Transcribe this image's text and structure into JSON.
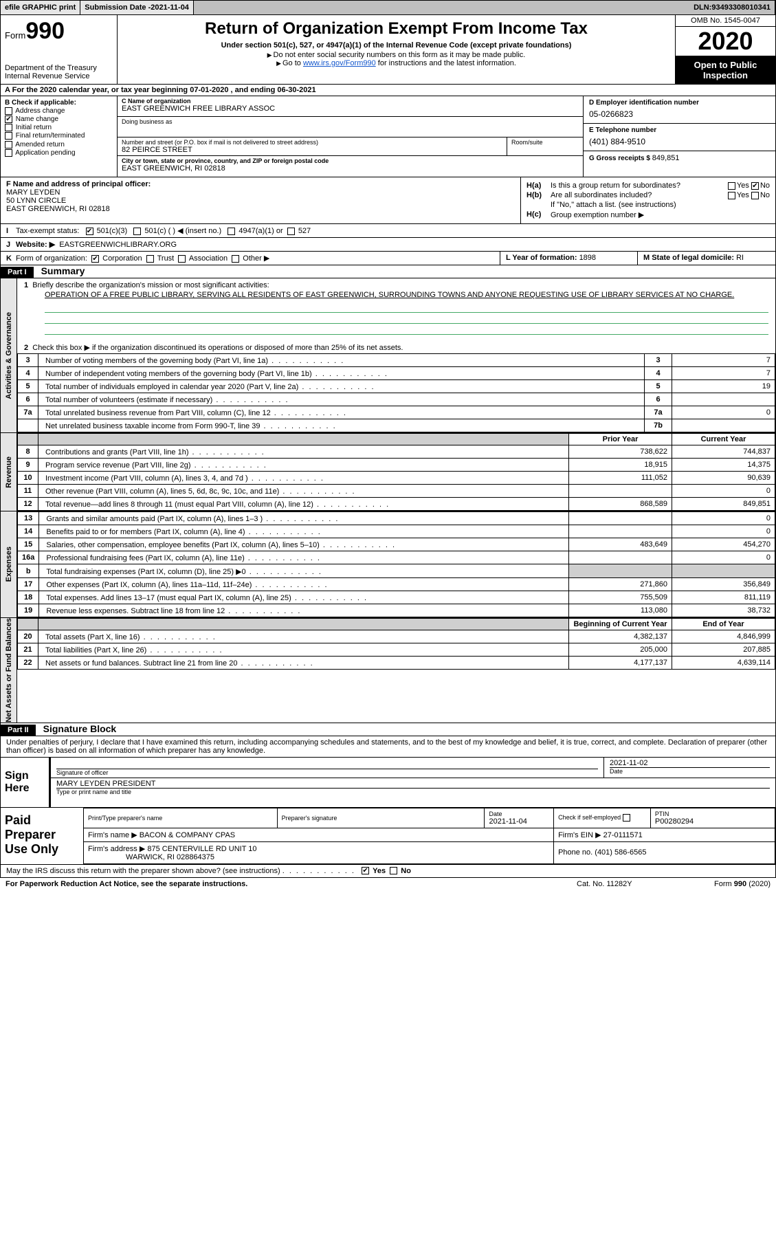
{
  "topbar": {
    "efile": "efile GRAPHIC print",
    "sub_label": "Submission Date - ",
    "sub_date": "2021-11-04",
    "dln_label": "DLN: ",
    "dln": "93493308010341"
  },
  "header": {
    "form_word": "Form",
    "form_num": "990",
    "dept": "Department of the Treasury\nInternal Revenue Service",
    "title": "Return of Organization Exempt From Income Tax",
    "subtitle": "Under section 501(c), 527, or 4947(a)(1) of the Internal Revenue Code (except private foundations)",
    "note1": "Do not enter social security numbers on this form as it may be made public.",
    "note2_pre": "Go to ",
    "note2_link": "www.irs.gov/Form990",
    "note2_post": " for instructions and the latest information.",
    "omb": "OMB No. 1545-0047",
    "year": "2020",
    "inspect": "Open to Public Inspection"
  },
  "period": {
    "text_pre": "For the 2020 calendar year, or tax year beginning ",
    "begin": "07-01-2020",
    "mid": " , and ending ",
    "end": "06-30-2021"
  },
  "B": {
    "header": "B Check if applicable:",
    "items": [
      "Address change",
      "Name change",
      "Initial return",
      "Final return/terminated",
      "Amended return",
      "Application pending"
    ],
    "checked_index": 1
  },
  "C": {
    "name_label": "C Name of organization",
    "name": "EAST GREENWICH FREE LIBRARY ASSOC",
    "dba_label": "Doing business as",
    "dba": "",
    "street_label": "Number and street (or P.O. box if mail is not delivered to street address)",
    "street": "82 PEIRCE STREET",
    "room_label": "Room/suite",
    "city_label": "City or town, state or province, country, and ZIP or foreign postal code",
    "city": "EAST GREENWICH, RI  02818"
  },
  "D": {
    "ein_label": "D Employer identification number",
    "ein": "05-0266823",
    "phone_label": "E Telephone number",
    "phone": "(401) 884-9510",
    "gross_label": "G Gross receipts $ ",
    "gross": "849,851"
  },
  "F": {
    "label": "F Name and address of principal officer:",
    "name": "MARY LEYDEN",
    "addr1": "50 LYNN CIRCLE",
    "addr2": "EAST GREENWICH, RI  02818"
  },
  "H": {
    "a": "Is this a group return for subordinates?",
    "a_yes": "Yes",
    "a_no": "No",
    "a_checked": "No",
    "b": "Are all subordinates included?",
    "b_yes": "Yes",
    "b_no": "No",
    "b_note": "If \"No,\" attach a list. (see instructions)",
    "c": "Group exemption number ▶"
  },
  "I": {
    "label": "Tax-exempt status:",
    "opt1": "501(c)(3)",
    "opt2": "501(c) (  ) ◀ (insert no.)",
    "opt3": "4947(a)(1) or",
    "opt4": "527",
    "checked": 0
  },
  "J": {
    "label": "Website: ▶",
    "value": "EASTGREENWICHLIBRARY.ORG"
  },
  "K": {
    "label": "Form of organization:",
    "opts": [
      "Corporation",
      "Trust",
      "Association",
      "Other ▶"
    ],
    "checked": 0
  },
  "LM": {
    "L_label": "L Year of formation: ",
    "L_val": "1898",
    "M_label": "M State of legal domicile: ",
    "M_val": "RI"
  },
  "part1": {
    "bar": "Part I",
    "title": "Summary",
    "side_gov": "Activities & Governance",
    "side_rev": "Revenue",
    "side_exp": "Expenses",
    "side_net": "Net Assets or Fund Balances",
    "q1": "Briefly describe the organization's mission or most significant activities:",
    "mission": "OPERATION OF A FREE PUBLIC LIBRARY, SERVING ALL RESIDENTS OF EAST GREENWICH, SURROUNDING TOWNS AND ANYONE REQUESTING USE OF LIBRARY SERVICES AT NO CHARGE.",
    "q2": "Check this box ▶  if the organization discontinued its operations or disposed of more than 25% of its net assets.",
    "lines_gov": [
      {
        "n": "3",
        "d": "Number of voting members of the governing body (Part VI, line 1a)",
        "box": "3",
        "v": "7"
      },
      {
        "n": "4",
        "d": "Number of independent voting members of the governing body (Part VI, line 1b)",
        "box": "4",
        "v": "7"
      },
      {
        "n": "5",
        "d": "Total number of individuals employed in calendar year 2020 (Part V, line 2a)",
        "box": "5",
        "v": "19"
      },
      {
        "n": "6",
        "d": "Total number of volunteers (estimate if necessary)",
        "box": "6",
        "v": ""
      },
      {
        "n": "7a",
        "d": "Total unrelated business revenue from Part VIII, column (C), line 12",
        "box": "7a",
        "v": "0"
      },
      {
        "n": "",
        "d": "Net unrelated business taxable income from Form 990-T, line 39",
        "box": "7b",
        "v": ""
      }
    ],
    "col_prior": "Prior Year",
    "col_current": "Current Year",
    "col_boy": "Beginning of Current Year",
    "col_eoy": "End of Year",
    "lines_rev": [
      {
        "n": "8",
        "d": "Contributions and grants (Part VIII, line 1h)",
        "p": "738,622",
        "c": "744,837"
      },
      {
        "n": "9",
        "d": "Program service revenue (Part VIII, line 2g)",
        "p": "18,915",
        "c": "14,375"
      },
      {
        "n": "10",
        "d": "Investment income (Part VIII, column (A), lines 3, 4, and 7d )",
        "p": "111,052",
        "c": "90,639"
      },
      {
        "n": "11",
        "d": "Other revenue (Part VIII, column (A), lines 5, 6d, 8c, 9c, 10c, and 11e)",
        "p": "",
        "c": "0"
      },
      {
        "n": "12",
        "d": "Total revenue—add lines 8 through 11 (must equal Part VIII, column (A), line 12)",
        "p": "868,589",
        "c": "849,851"
      }
    ],
    "lines_exp": [
      {
        "n": "13",
        "d": "Grants and similar amounts paid (Part IX, column (A), lines 1–3 )",
        "p": "",
        "c": "0"
      },
      {
        "n": "14",
        "d": "Benefits paid to or for members (Part IX, column (A), line 4)",
        "p": "",
        "c": "0"
      },
      {
        "n": "15",
        "d": "Salaries, other compensation, employee benefits (Part IX, column (A), lines 5–10)",
        "p": "483,649",
        "c": "454,270"
      },
      {
        "n": "16a",
        "d": "Professional fundraising fees (Part IX, column (A), line 11e)",
        "p": "",
        "c": "0"
      },
      {
        "n": "b",
        "d": "Total fundraising expenses (Part IX, column (D), line 25) ▶0",
        "p": "__shade__",
        "c": "__shade__"
      },
      {
        "n": "17",
        "d": "Other expenses (Part IX, column (A), lines 11a–11d, 11f–24e)",
        "p": "271,860",
        "c": "356,849"
      },
      {
        "n": "18",
        "d": "Total expenses. Add lines 13–17 (must equal Part IX, column (A), line 25)",
        "p": "755,509",
        "c": "811,119"
      },
      {
        "n": "19",
        "d": "Revenue less expenses. Subtract line 18 from line 12",
        "p": "113,080",
        "c": "38,732"
      }
    ],
    "lines_net": [
      {
        "n": "20",
        "d": "Total assets (Part X, line 16)",
        "p": "4,382,137",
        "c": "4,846,999"
      },
      {
        "n": "21",
        "d": "Total liabilities (Part X, line 26)",
        "p": "205,000",
        "c": "207,885"
      },
      {
        "n": "22",
        "d": "Net assets or fund balances. Subtract line 21 from line 20",
        "p": "4,177,137",
        "c": "4,639,114"
      }
    ]
  },
  "part2": {
    "bar": "Part II",
    "title": "Signature Block",
    "penalty": "Under penalties of perjury, I declare that I have examined this return, including accompanying schedules and statements, and to the best of my knowledge and belief, it is true, correct, and complete. Declaration of preparer (other than officer) is based on all information of which preparer has any knowledge.",
    "sign_here": "Sign Here",
    "sig_officer": "Signature of officer",
    "sig_date": "Date",
    "sig_date_val": "2021-11-02",
    "officer_name": "MARY LEYDEN  PRESIDENT",
    "type_name": "Type or print name and title"
  },
  "prep": {
    "label": "Paid Preparer Use Only",
    "c_name": "Print/Type preparer's name",
    "c_sig": "Preparer's signature",
    "c_date": "Date",
    "date_val": "2021-11-04",
    "c_self": "Check        if self-employed",
    "c_ptin": "PTIN",
    "ptin_val": "P00280294",
    "firm_name_lbl": "Firm's name   ▶",
    "firm_name": "BACON & COMPANY CPAS",
    "firm_ein_lbl": "Firm's EIN ▶",
    "firm_ein": "27-0111571",
    "firm_addr_lbl": "Firm's address ▶",
    "firm_addr1": "875 CENTERVILLE RD UNIT 10",
    "firm_addr2": "WARWICK, RI  028864375",
    "phone_lbl": "Phone no. ",
    "phone": "(401) 586-6565"
  },
  "irsq": {
    "q": "May the IRS discuss this return with the preparer shown above? (see instructions)",
    "yes": "Yes",
    "no": "No",
    "checked": "Yes"
  },
  "footer": {
    "left": "For Paperwork Reduction Act Notice, see the separate instructions.",
    "mid": "Cat. No. 11282Y",
    "right": "Form 990 (2020)"
  },
  "style": {
    "link_color": "#1155cc",
    "band_bg": "#e6e6e6",
    "shade_bg": "#cfcfcf"
  }
}
